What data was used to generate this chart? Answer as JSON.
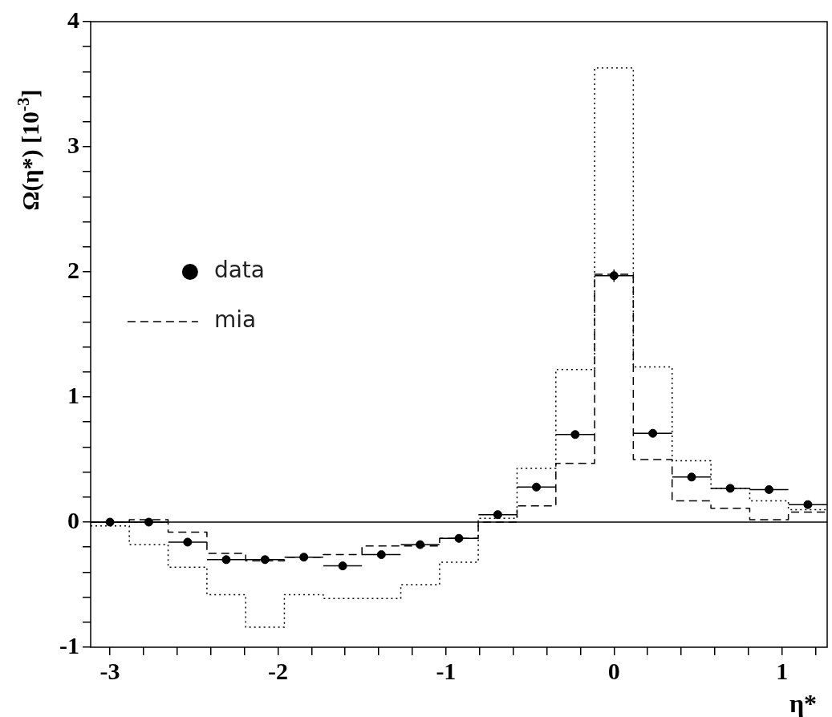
{
  "chart_data": {
    "type": "histogram",
    "xlabel": "η*",
    "ylabel": "Ω(η*) [10$^{-3}$]",
    "bins": [
      -3.115,
      -2.885,
      -2.654,
      -2.423,
      -2.192,
      -1.962,
      -1.731,
      -1.5,
      -1.269,
      -1.038,
      -0.808,
      -0.577,
      -0.346,
      -0.115,
      0.115,
      0.346,
      0.577,
      0.808,
      1.038,
      1.269
    ],
    "xlim": [
      -3.115,
      1.269
    ],
    "xticks": [
      -3,
      {
        "value": -2.8,
        "label": null
      },
      {
        "value": -2.6,
        "label": null
      },
      {
        "value": -2.4,
        "label": null
      },
      {
        "value": -2.2,
        "label": null
      },
      -2,
      {
        "value": -1.8,
        "label": null
      },
      {
        "value": -1.6,
        "label": null
      },
      {
        "value": -1.4,
        "label": null
      },
      {
        "value": -1.2,
        "label": null
      },
      -1,
      {
        "value": -0.8,
        "label": null
      },
      {
        "value": -0.6,
        "label": null
      },
      {
        "value": -0.4,
        "label": null
      },
      {
        "value": -0.2,
        "label": null
      },
      0,
      {
        "value": 0.2,
        "label": null
      },
      {
        "value": 0.4,
        "label": null
      },
      {
        "value": 0.6,
        "label": null
      },
      {
        "value": 0.8,
        "label": null
      },
      1,
      {
        "value": 1.2,
        "label": null
      }
    ],
    "ylim": [
      -1,
      4
    ],
    "yticks": [
      -1,
      {
        "value": -0.8,
        "label": null
      },
      {
        "value": -0.6,
        "label": null
      },
      {
        "value": -0.4,
        "label": null
      },
      {
        "value": -0.2,
        "label": null
      },
      0,
      {
        "value": 0.2,
        "label": null
      },
      {
        "value": 0.4,
        "label": null
      },
      {
        "value": 0.6,
        "label": null
      },
      {
        "value": 0.8,
        "label": null
      },
      1,
      {
        "value": 1.2,
        "label": null
      },
      {
        "value": 1.4,
        "label": null
      },
      {
        "value": 1.6,
        "label": null
      },
      {
        "value": 1.8,
        "label": null
      },
      2,
      {
        "value": 2.2,
        "label": null
      },
      {
        "value": 2.4,
        "label": null
      },
      {
        "value": 2.6,
        "label": null
      },
      {
        "value": 2.8,
        "label": null
      },
      3,
      {
        "value": 3.2,
        "label": null
      },
      {
        "value": 3.4,
        "label": null
      },
      {
        "value": 3.6,
        "label": null
      },
      {
        "value": 3.8,
        "label": null
      },
      4
    ],
    "ref_lines": [
      {
        "axis": "y",
        "value": 0
      }
    ],
    "legend": "left",
    "series": [
      {
        "name": "data",
        "type": "scatter",
        "marker": "circle",
        "color": "#000000",
        "x": [
          -3,
          -2.769,
          -2.538,
          -2.308,
          -2.077,
          -1.846,
          -1.615,
          -1.385,
          -1.154,
          -0.923,
          -0.692,
          -0.462,
          -0.231,
          0,
          0.231,
          0.462,
          0.692,
          0.923,
          1.154
        ],
        "values": [
          0.0,
          0.0,
          -0.16,
          -0.3,
          -0.3,
          -0.28,
          -0.35,
          -0.26,
          -0.18,
          -0.13,
          0.06,
          0.28,
          0.7,
          1.97,
          0.71,
          0.36,
          0.27,
          0.26,
          0.14
        ],
        "errors": [
          null,
          null,
          null,
          null,
          null,
          null,
          null,
          null,
          null,
          null,
          null,
          null,
          null,
          0.05,
          null,
          null,
          null,
          null,
          null
        ],
        "xerrors": [
          0.115,
          0.115,
          0.115,
          0.115,
          0.115,
          0.115,
          0.115,
          0.115,
          0.115,
          0.115,
          0.115,
          0.115,
          0.115,
          0.115,
          0.115,
          0.115,
          0.115,
          0.115,
          0.115
        ]
      },
      {
        "name": "mia",
        "line_style": "dashed",
        "color": "#000000",
        "values": [
          0.0,
          0.02,
          -0.08,
          -0.25,
          -0.31,
          -0.28,
          -0.26,
          -0.19,
          -0.19,
          -0.13,
          0.0,
          0.13,
          0.47,
          1.98,
          0.5,
          0.17,
          0.11,
          0.02,
          0.08
        ]
      },
      {
        "line_style": "dotted",
        "color": "#000000",
        "values": [
          -0.03,
          -0.18,
          -0.36,
          -0.58,
          -0.84,
          -0.58,
          -0.61,
          -0.61,
          -0.5,
          -0.32,
          0.03,
          0.43,
          1.22,
          3.63,
          1.24,
          0.49,
          0.27,
          0.17,
          0.1
        ]
      }
    ]
  }
}
